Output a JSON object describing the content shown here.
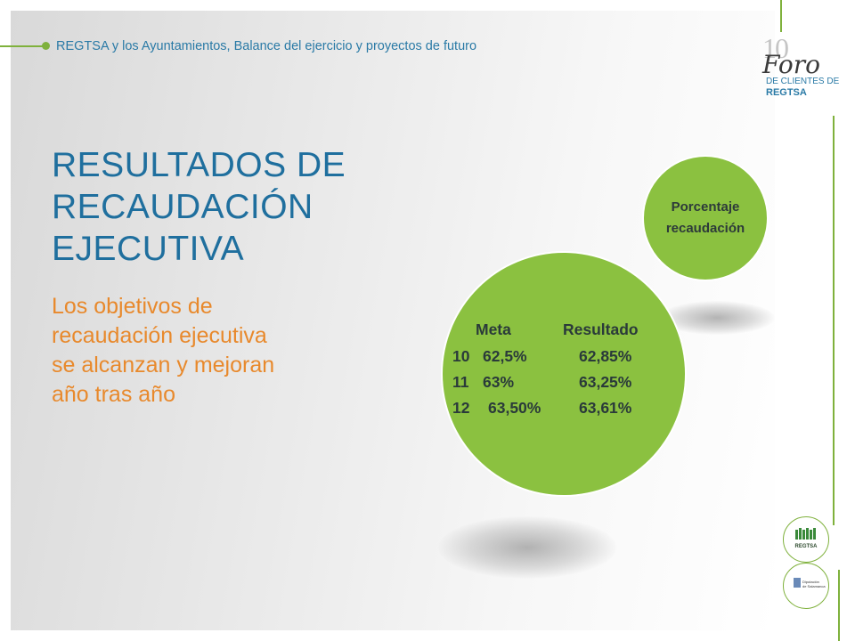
{
  "header": {
    "subtitle": "REGTSA y los Ayuntamientos, Balance del ejercicio y proyectos de futuro"
  },
  "logo": {
    "number": "10",
    "name": "Foro",
    "line1": "DE CLIENTES DE",
    "line2": "REGTSA"
  },
  "title": {
    "lines": [
      "RESULTADOS DE",
      "RECAUDACIÓN",
      "EJECUTIVA"
    ]
  },
  "body": {
    "lines": [
      "Los objetivos  de",
      "recaudación ejecutiva",
      "se alcanzan y mejoran",
      "año tras año"
    ]
  },
  "small_circle": {
    "lines": [
      "Porcentaje",
      "recaudación"
    ]
  },
  "results_table": {
    "headers": {
      "meta": "Meta",
      "resultado": "Resultado"
    },
    "rows": [
      {
        "year": "10",
        "meta": "62,5%",
        "resultado": "62,85%"
      },
      {
        "year": "11",
        "meta": "63%",
        "resultado": "63,25%"
      },
      {
        "year": "12",
        "meta": "63,50%",
        "resultado": "63,61%"
      }
    ]
  },
  "badges": {
    "regtsa": "REGTSA",
    "diputacion_1": "Diputación",
    "diputacion_2": "de Salamanca"
  },
  "colors": {
    "accent_green": "#8bc140",
    "title_blue": "#1f6f9e",
    "body_orange": "#e8892c"
  }
}
